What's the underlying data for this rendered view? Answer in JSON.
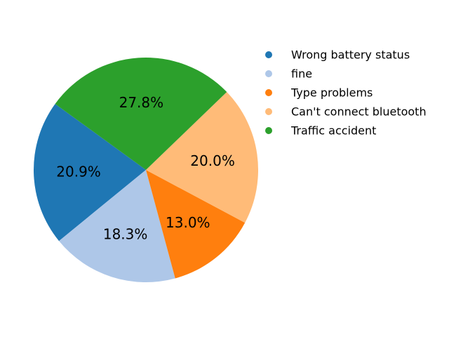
{
  "chart_data": {
    "type": "pie",
    "title": "",
    "slices": [
      {
        "label": "Wrong battery status",
        "value": 20.9,
        "display": "20.9%",
        "color": "#1f77b4"
      },
      {
        "label": "fine",
        "value": 18.3,
        "display": "18.3%",
        "color": "#aec7e8"
      },
      {
        "label": "Type problems",
        "value": 13.0,
        "display": "13.0%",
        "color": "#ff7f0e"
      },
      {
        "label": "Can't connect bluetooth",
        "value": 20.0,
        "display": "20.0%",
        "color": "#ffbb78"
      },
      {
        "label": "Traffic accident",
        "value": 27.8,
        "display": "27.8%",
        "color": "#2ca02c"
      }
    ],
    "start_angle_deg": 144,
    "direction": "counterclockwise",
    "legend_position": "right"
  }
}
